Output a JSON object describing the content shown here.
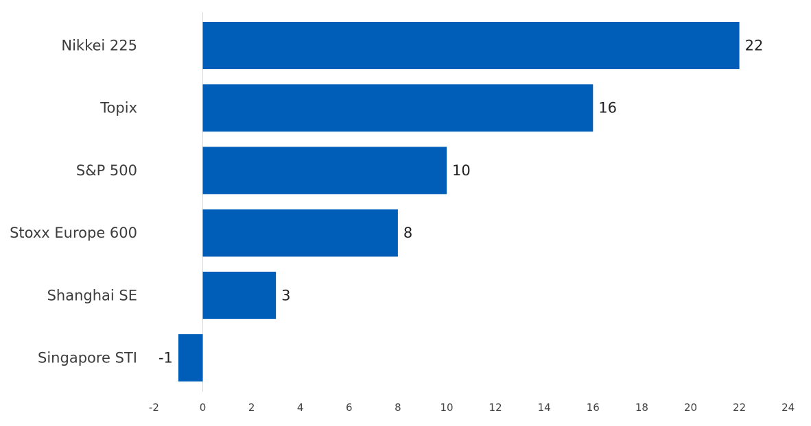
{
  "chart_data": {
    "type": "bar",
    "orientation": "horizontal",
    "categories": [
      "Nikkei 225",
      "Topix",
      "S&P 500",
      "Stoxx Europe 600",
      "Shanghai SE",
      "Singapore STI"
    ],
    "values": [
      22,
      16,
      10,
      8,
      3,
      -1
    ],
    "value_labels": [
      "22",
      "16",
      "10",
      "8",
      "3",
      "-1"
    ],
    "x_ticks": [
      "-2",
      "0",
      "2",
      "4",
      "6",
      "8",
      "10",
      "12",
      "14",
      "16",
      "18",
      "20",
      "22",
      "24"
    ],
    "xlim": [
      -2,
      24
    ],
    "grid": false,
    "legend": "none",
    "bar_color": "#005EB8",
    "zero_line_color": "#d9d9d9"
  }
}
